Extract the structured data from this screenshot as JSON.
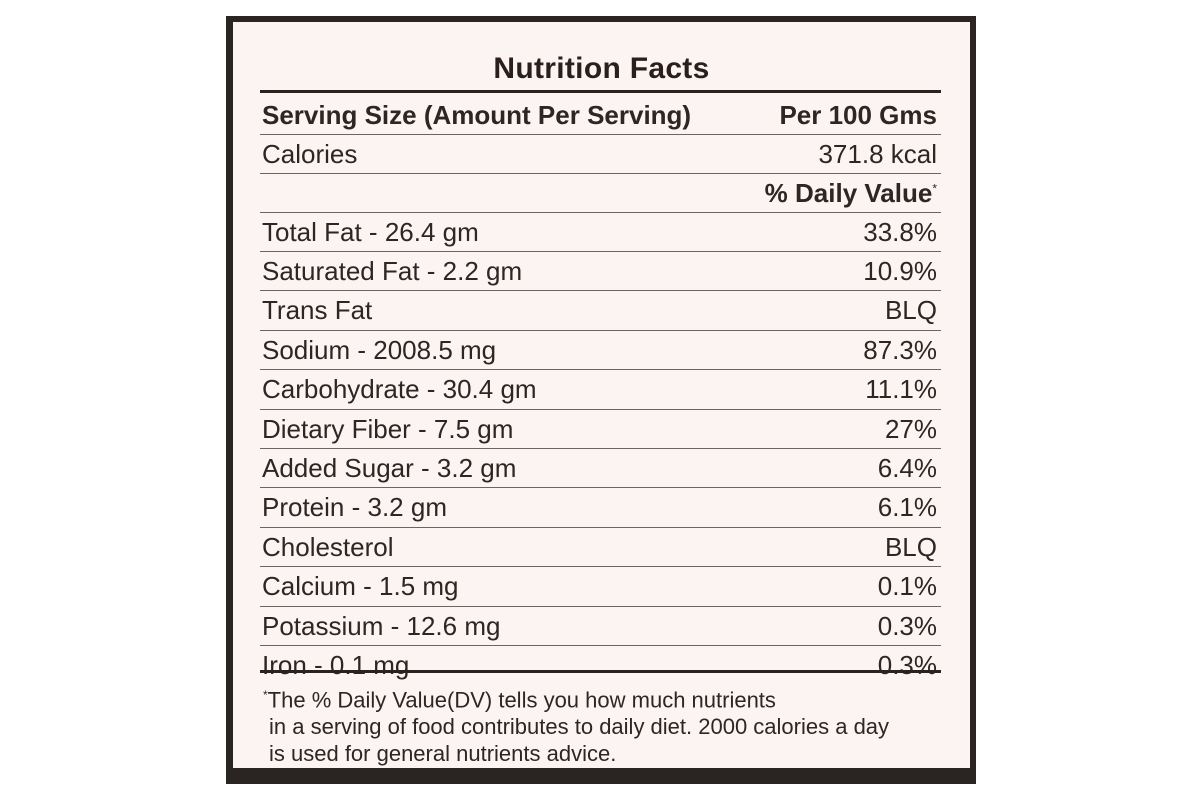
{
  "label": {
    "title": "Nutrition Facts",
    "serving_size_label": "Serving Size (Amount Per Serving)",
    "serving_size_value": "Per 100 Gms",
    "calories_label": "Calories",
    "calories_value": "371.8 kcal",
    "daily_value_header": "% Daily Value",
    "daily_value_marker": "*",
    "nutrients": [
      {
        "name": "Total Fat - 26.4 gm",
        "dv": "33.8%"
      },
      {
        "name": "Saturated Fat - 2.2 gm",
        "dv": "10.9%"
      },
      {
        "name": "Trans Fat",
        "dv": "BLQ"
      },
      {
        "name": "Sodium - 2008.5 mg",
        "dv": "87.3%"
      },
      {
        "name": "Carbohydrate - 30.4 gm",
        "dv": "11.1%"
      },
      {
        "name": "Dietary Fiber - 7.5 gm",
        "dv": "27%"
      },
      {
        "name": "Added Sugar - 3.2 gm",
        "dv": "6.4%"
      },
      {
        "name": "Protein - 3.2 gm",
        "dv": "6.1%"
      },
      {
        "name": "Cholesterol",
        "dv": "BLQ"
      },
      {
        "name": "Calcium - 1.5 mg",
        "dv": "0.1%"
      },
      {
        "name": "Potassium - 12.6 mg",
        "dv": "0.3%"
      },
      {
        "name": "Iron - 0.1 mg",
        "dv": "0.3%"
      }
    ],
    "footnote_marker": "*",
    "footnote_lines": [
      "The % Daily Value(DV) tells you how much nutrients",
      "in a serving of food contributes to daily diet. 2000 calories a day",
      "is used for general nutrients advice."
    ]
  },
  "colors": {
    "frame": "#2a2523",
    "panel": "#fbf4f2",
    "text": "#2f2522",
    "rule": "#6e6360"
  }
}
